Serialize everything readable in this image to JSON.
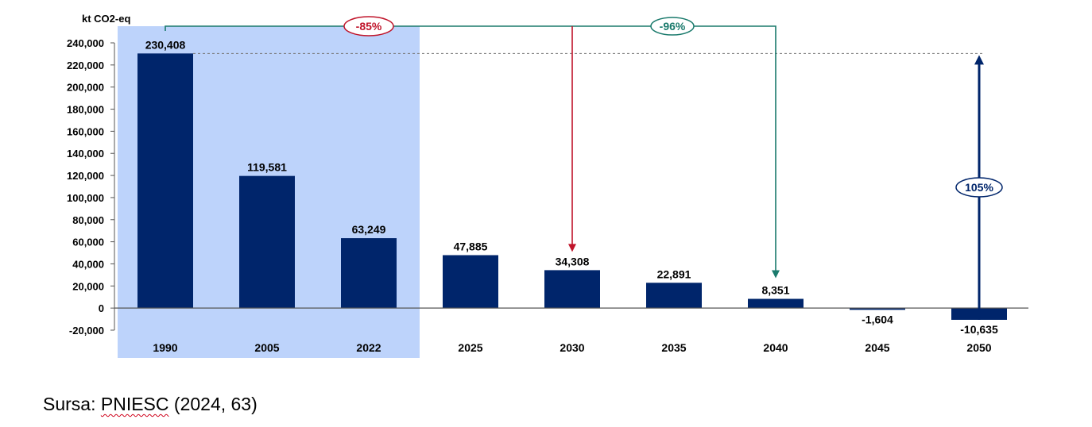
{
  "chart_data": {
    "type": "bar",
    "ylabel": "kt CO2-eq",
    "categories": [
      "1990",
      "2005",
      "2022",
      "2025",
      "2030",
      "2035",
      "2040",
      "2045",
      "2050"
    ],
    "values": [
      230408,
      119581,
      63249,
      47885,
      34308,
      22891,
      8351,
      -1604,
      -10635
    ],
    "data_labels": [
      "230,408",
      "119,581",
      "63,249",
      "47,885",
      "34,308",
      "22,891",
      "8,351",
      "-1,604",
      "-10,635"
    ],
    "ylim": [
      -20000,
      240000
    ],
    "yticks": [
      -20000,
      0,
      20000,
      40000,
      60000,
      80000,
      100000,
      120000,
      140000,
      160000,
      180000,
      200000,
      220000,
      240000
    ],
    "ytick_labels": [
      "-20,000",
      "0",
      "20,000",
      "40,000",
      "60,000",
      "80,000",
      "100,000",
      "120,000",
      "140,000",
      "160,000",
      "180,000",
      "200,000",
      "220,000",
      "240,000"
    ],
    "grid": false,
    "highlighted_categories": [
      "1990",
      "2005",
      "2022"
    ],
    "bar_color": "#00256b",
    "highlight_color": "#bdd3fb",
    "annotations": [
      {
        "label": "-85%",
        "from": "1990",
        "to": "2030",
        "color": "#c0142a"
      },
      {
        "label": "-96%",
        "from": "1990",
        "to": "2040",
        "color": "#1a7a6c"
      },
      {
        "label": "105%",
        "from": "2050",
        "to": "1990",
        "color": "#00256b"
      }
    ]
  },
  "source": {
    "prefix": "Sursa: ",
    "name": "PNIESC",
    "suffix": " (2024, 63)"
  }
}
